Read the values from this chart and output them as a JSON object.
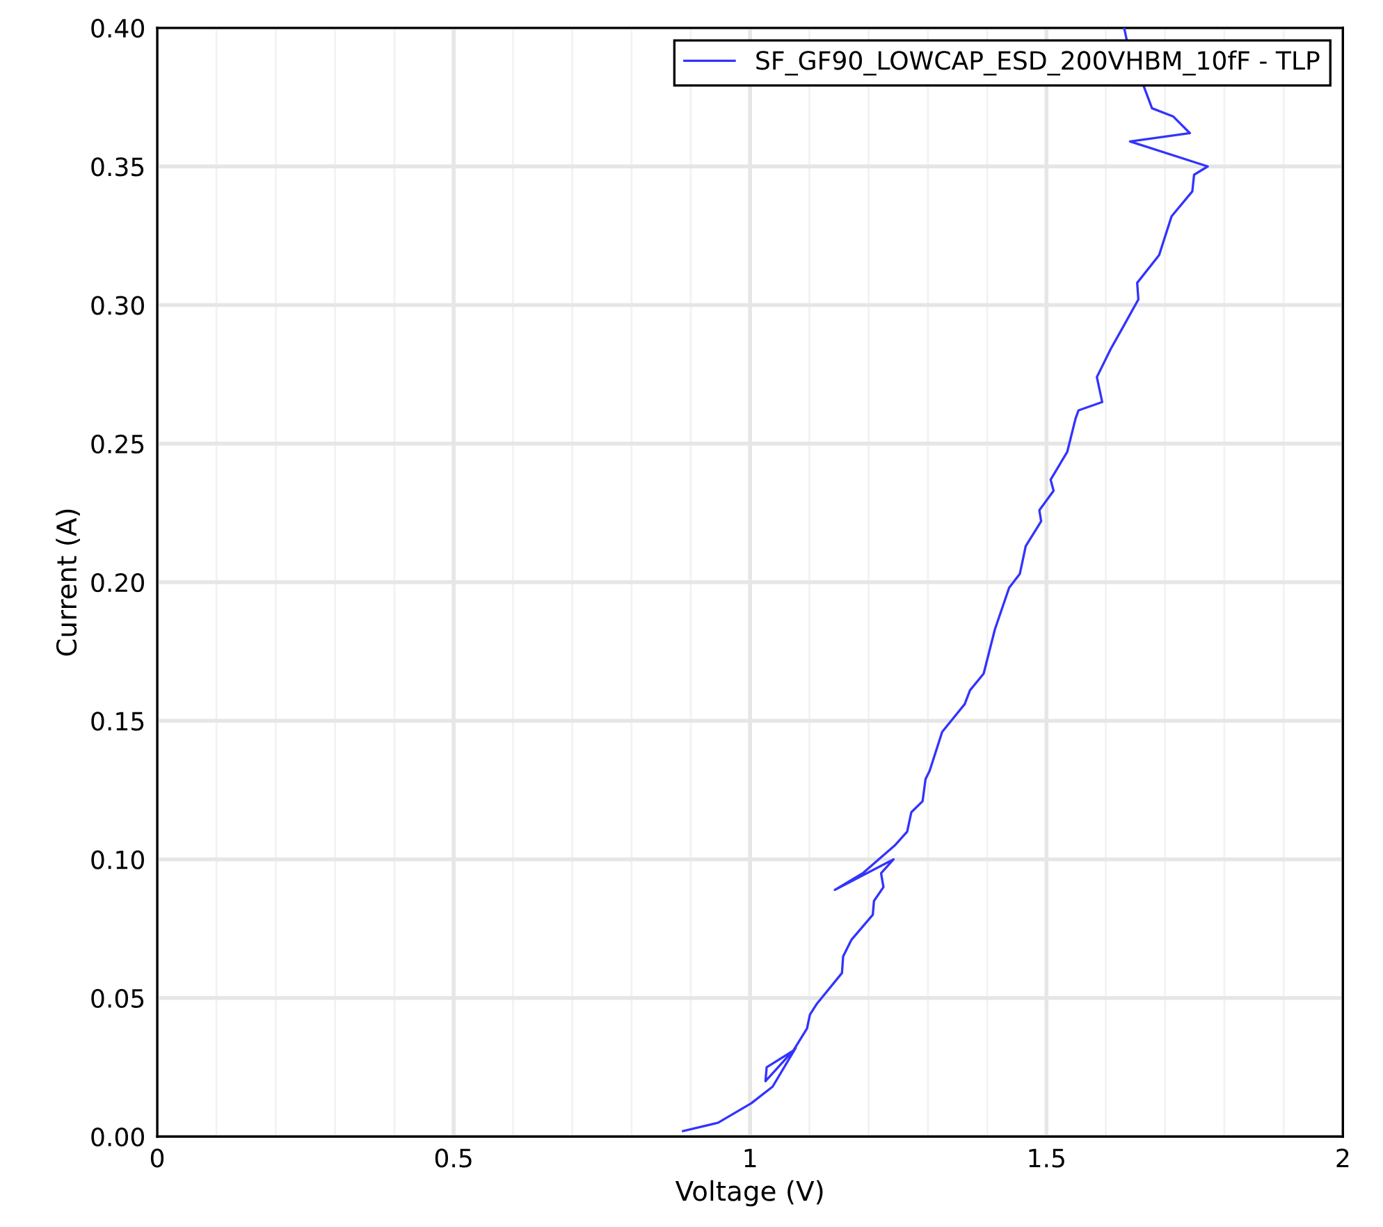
{
  "chart_data": {
    "type": "line",
    "xlabel": "Voltage (V)",
    "ylabel": "Current (A)",
    "series": [
      {
        "name": "SF_GF90_LOWCAP_ESD_200VHBM_10fF - TLP",
        "color": "#3333ff",
        "x": [
          0.887,
          0.946,
          1.002,
          1.038,
          1.077,
          1.026,
          1.028,
          1.073,
          1.096,
          1.101,
          1.113,
          1.155,
          1.157,
          1.171,
          1.207,
          1.209,
          1.225,
          1.221,
          1.242,
          1.143,
          1.19,
          1.244,
          1.265,
          1.272,
          1.291,
          1.296,
          1.303,
          1.324,
          1.362,
          1.371,
          1.394,
          1.413,
          1.437,
          1.455,
          1.465,
          1.491,
          1.488,
          1.512,
          1.507,
          1.535,
          1.549,
          1.554,
          1.594,
          1.585,
          1.608,
          1.629,
          1.655,
          1.653,
          1.69,
          1.711,
          1.746,
          1.749,
          1.772,
          1.641,
          1.742,
          1.714,
          1.678,
          1.636,
          1.631
        ],
        "values": [
          0.002,
          0.005,
          0.012,
          0.018,
          0.032,
          0.02,
          0.025,
          0.031,
          0.039,
          0.044,
          0.048,
          0.059,
          0.065,
          0.071,
          0.08,
          0.085,
          0.09,
          0.095,
          0.1,
          0.089,
          0.095,
          0.105,
          0.11,
          0.117,
          0.121,
          0.129,
          0.132,
          0.146,
          0.156,
          0.161,
          0.167,
          0.183,
          0.198,
          0.203,
          0.213,
          0.222,
          0.226,
          0.233,
          0.237,
          0.247,
          0.259,
          0.262,
          0.265,
          0.274,
          0.284,
          0.292,
          0.302,
          0.308,
          0.318,
          0.332,
          0.341,
          0.347,
          0.35,
          0.359,
          0.362,
          0.368,
          0.371,
          0.395,
          0.4
        ]
      }
    ],
    "xlim": [
      0,
      2
    ],
    "ylim": [
      0,
      0.4
    ],
    "xticks": [
      0,
      {
        "value": 0.1,
        "label": null
      },
      {
        "value": 0.2,
        "label": null
      },
      {
        "value": 0.3,
        "label": null
      },
      {
        "value": 0.4,
        "label": null
      },
      {
        "value": 0.5,
        "label": "0.5"
      },
      {
        "value": 0.6,
        "label": null
      },
      {
        "value": 0.7,
        "label": null
      },
      {
        "value": 0.8,
        "label": null
      },
      {
        "value": 0.9,
        "label": null
      },
      1,
      {
        "value": 1.1,
        "label": null
      },
      {
        "value": 1.2,
        "label": null
      },
      {
        "value": 1.3,
        "label": null
      },
      {
        "value": 1.4,
        "label": null
      },
      {
        "value": 1.5,
        "label": "1.5"
      },
      {
        "value": 1.6,
        "label": null
      },
      {
        "value": 1.7,
        "label": null
      },
      {
        "value": 1.8,
        "label": null
      },
      {
        "value": 1.9,
        "label": null
      },
      2
    ],
    "yticks": [
      {
        "value": 0,
        "label": "0.00"
      },
      {
        "value": 0.05,
        "label": "0.05"
      },
      {
        "value": 0.1,
        "label": "0.10"
      },
      {
        "value": 0.15,
        "label": "0.15"
      },
      {
        "value": 0.2,
        "label": "0.20"
      },
      {
        "value": 0.25,
        "label": "0.25"
      },
      {
        "value": 0.3,
        "label": "0.30"
      },
      {
        "value": 0.35,
        "label": "0.35"
      },
      {
        "value": 0.4,
        "label": "0.40"
      }
    ],
    "grid": true,
    "legend": "top right",
    "line_style": "solid",
    "marker": "none"
  }
}
